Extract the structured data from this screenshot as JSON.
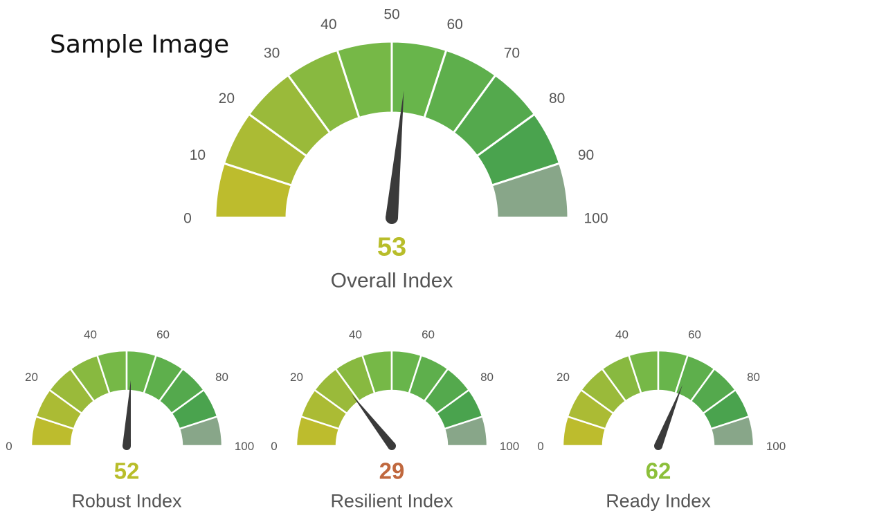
{
  "watermark": "Sample Image",
  "chart_data": [
    {
      "type": "gauge",
      "title": "Overall Index",
      "value": 53,
      "range": [
        0,
        100
      ],
      "tick_labels": [
        "0",
        "10",
        "20",
        "30",
        "40",
        "50",
        "60",
        "70",
        "80",
        "90",
        "100"
      ],
      "value_color": "#b8bd2a"
    },
    {
      "type": "gauge",
      "title": "Robust Index",
      "value": 52,
      "range": [
        0,
        100
      ],
      "tick_labels": [
        "0",
        "20",
        "40",
        "60",
        "80",
        "100"
      ],
      "value_color": "#b8bd2a"
    },
    {
      "type": "gauge",
      "title": "Resilient Index",
      "value": 29,
      "range": [
        0,
        100
      ],
      "tick_labels": [
        "0",
        "20",
        "40",
        "60",
        "80",
        "100"
      ],
      "value_color": "#c0683e"
    },
    {
      "type": "gauge",
      "title": "Ready Index",
      "value": 62,
      "range": [
        0,
        100
      ],
      "tick_labels": [
        "0",
        "20",
        "40",
        "60",
        "80",
        "100"
      ],
      "value_color": "#8cbf3a"
    }
  ],
  "colors": {
    "gauge_low": "#c6bc2a",
    "gauge_mid": "#6db84a",
    "gauge_high": "#4aa34e",
    "gauge_end": "#a7a7a7",
    "needle": "#3a3a3a"
  }
}
